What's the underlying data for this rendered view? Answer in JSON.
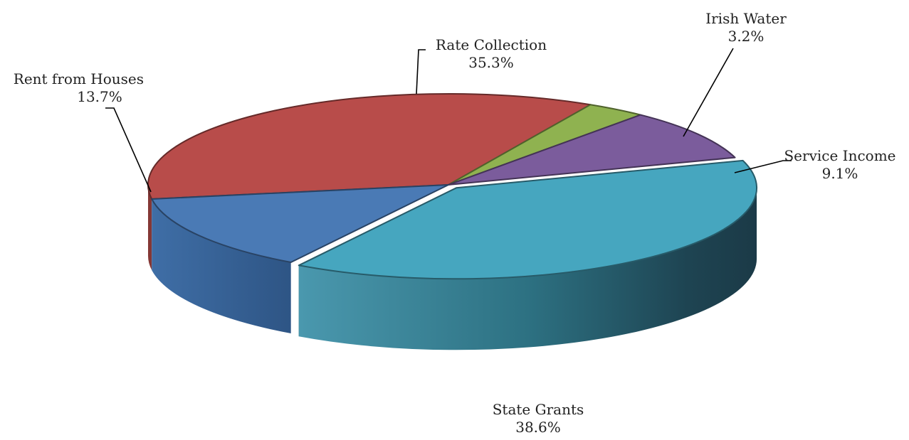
{
  "chart_data": {
    "type": "pie",
    "title": "",
    "slices": [
      {
        "label": "Rate Collection",
        "value": 35.3,
        "value_label": "35.3%",
        "color": "#B84C4A"
      },
      {
        "label": "Irish Water",
        "value": 3.2,
        "value_label": "3.2%",
        "color": "#8FB250"
      },
      {
        "label": "Service Income",
        "value": 9.1,
        "value_label": "9.1%",
        "color": "#7B5C9C"
      },
      {
        "label": "State Grants",
        "value": 38.6,
        "value_label": "38.6%",
        "color": "#46A6BF"
      },
      {
        "label": "Rent from Houses",
        "value": 13.7,
        "value_label": "13.7%",
        "color": "#4A7AB5"
      }
    ],
    "style": "3d-pie",
    "legend": "none"
  }
}
